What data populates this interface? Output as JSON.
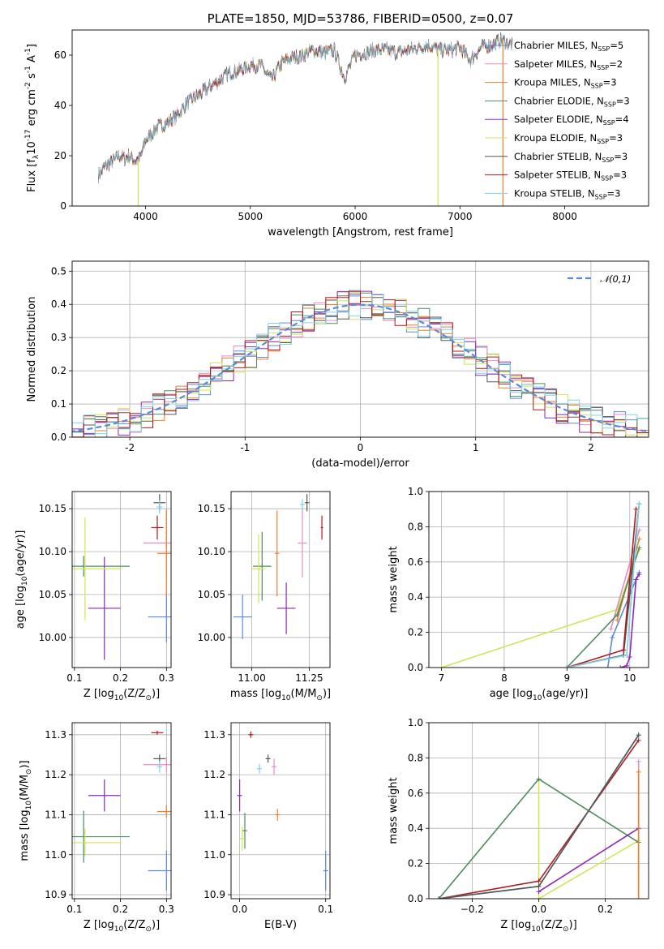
{
  "colors": {
    "Chabrier MILES": "#5b8bd6",
    "Salpeter MILES": "#e68cc3",
    "Kroupa MILES": "#ee7f2d",
    "Chabrier ELODIE": "#4f8b5e",
    "Salpeter ELODIE": "#8c2ab4",
    "Kroupa ELODIE": "#d2e458",
    "Chabrier STELIB": "#555555",
    "Salpeter STELIB": "#b0191e",
    "Kroupa STELIB": "#7fd3e8"
  },
  "chart_data": [
    {
      "id": "spectrum",
      "type": "line",
      "title": "PLATE=1850, MJD=53786, FIBERID=0500, z=0.07",
      "xlabel": "wavelength [Angstrom, rest frame]",
      "ylabel": "Flux [f$_\\lambda$10$^{-17}$ erg cm$^{-2}$ s$^{-1}$ A$^{-1}$]",
      "xlim": [
        3300,
        8800
      ],
      "ylim": [
        0,
        70
      ],
      "xticks": [
        4000,
        5000,
        6000,
        7000,
        8000
      ],
      "yticks": [
        0,
        20,
        40,
        60
      ],
      "grid": false,
      "legend_position": "top-right",
      "legend": [
        {
          "model": "Chabrier MILES",
          "nssp": "5"
        },
        {
          "model": "Salpeter MILES",
          "nssp": "2"
        },
        {
          "model": "Kroupa MILES",
          "nssp": "3"
        },
        {
          "model": "Chabrier ELODIE",
          "nssp": "3"
        },
        {
          "model": "Salpeter ELODIE",
          "nssp": "4"
        },
        {
          "model": "Kroupa ELODIE",
          "nssp": "3"
        },
        {
          "model": "Chabrier STELIB",
          "nssp": "3"
        },
        {
          "model": "Salpeter STELIB",
          "nssp": "3"
        },
        {
          "model": "Kroupa STELIB",
          "nssp": "3"
        }
      ],
      "x": [
        3550,
        3600,
        3650,
        3700,
        3750,
        3800,
        3850,
        3900,
        3950,
        4000,
        4100,
        4200,
        4300,
        4400,
        4500,
        4600,
        4700,
        4800,
        4900,
        5000,
        5100,
        5200,
        5300,
        5400,
        5500,
        5600,
        5700,
        5800,
        5900,
        6000,
        6100,
        6200,
        6300,
        6400,
        6500,
        6600,
        6700,
        6800,
        6900,
        7000,
        7100,
        7200,
        7300,
        7400,
        7500
      ],
      "y": [
        12,
        15,
        17,
        18,
        20,
        19,
        20,
        18,
        19,
        26,
        31,
        33,
        36,
        41,
        44,
        47,
        50,
        53,
        54,
        56,
        56,
        50,
        57,
        59,
        60,
        62,
        61,
        62,
        51,
        60,
        61,
        62,
        62,
        61,
        62,
        63,
        64,
        62,
        62,
        63,
        58,
        63,
        64,
        66,
        64
      ],
      "spikes": [
        {
          "model": "Kroupa ELODIE",
          "x": 3930
        },
        {
          "model": "Kroupa ELODIE",
          "x": 6790
        },
        {
          "model": "Kroupa MILES",
          "x": 7410
        }
      ]
    },
    {
      "id": "residuals",
      "type": "line",
      "xlabel": "(data-model)/error",
      "ylabel": "Normed distribution",
      "xlim": [
        -2.5,
        2.5
      ],
      "ylim": [
        0,
        0.53
      ],
      "xticks": [
        -2,
        -1,
        0,
        1,
        2
      ],
      "yticks": [
        0.0,
        0.1,
        0.2,
        0.3,
        0.4,
        0.5
      ],
      "grid": true,
      "legend_position": "top-right",
      "reference": {
        "name": "$\\mathcal{N}(0,1)$",
        "mean": 0,
        "sigma": 1
      }
    },
    {
      "id": "age-vs-Z",
      "type": "scatter",
      "xlabel": "Z [log$_{10}$(Z/Z$_\\odot$)]",
      "ylabel": "age  [log$_{10}$(age/yr)]",
      "xlim": [
        0.095,
        0.31
      ],
      "ylim": [
        9.965,
        10.17
      ],
      "xticks": [
        0.1,
        0.2,
        0.3
      ],
      "yticks": [
        10.0,
        10.05,
        10.1,
        10.15
      ],
      "grid": true,
      "series": [
        {
          "model": "Chabrier MILES",
          "x": 0.3,
          "xerr": 0.04,
          "y": 10.024,
          "yerr": 0.03
        },
        {
          "model": "Salpeter MILES",
          "x": 0.3,
          "xerr": 0.05,
          "y": 10.11,
          "yerr": 0.04
        },
        {
          "model": "Kroupa MILES",
          "x": 0.3,
          "xerr": 0.02,
          "y": 10.098,
          "yerr": 0.05
        },
        {
          "model": "Chabrier ELODIE",
          "x": 0.12,
          "xerr": 0.1,
          "y": 10.083,
          "yerr": 0.012
        },
        {
          "model": "Salpeter ELODIE",
          "x": 0.165,
          "xerr": 0.035,
          "y": 10.034,
          "yerr": 0.06
        },
        {
          "model": "Kroupa ELODIE",
          "x": 0.123,
          "xerr": 0.08,
          "y": 10.08,
          "yerr": 0.06
        },
        {
          "model": "Chabrier STELIB",
          "x": 0.285,
          "xerr": 0.013,
          "y": 10.157,
          "yerr": 0.01
        },
        {
          "model": "Salpeter STELIB",
          "x": 0.28,
          "xerr": 0.013,
          "y": 10.128,
          "yerr": 0.014
        },
        {
          "model": "Kroupa STELIB",
          "x": 0.285,
          "xerr": 0.006,
          "y": 10.152,
          "yerr": 0.008
        }
      ]
    },
    {
      "id": "age-vs-mass",
      "type": "scatter",
      "xlabel": "mass [log$_{10}$(M/M$_\\odot$)]",
      "ylabel": "",
      "xlim": [
        10.91,
        11.34
      ],
      "ylim": [
        9.965,
        10.17
      ],
      "xticks": [
        11.0,
        11.25
      ],
      "yticks": [
        10.0,
        10.05,
        10.1,
        10.15
      ],
      "grid": true,
      "series": [
        {
          "model": "Chabrier MILES",
          "x": 10.96,
          "xerr": 0.04,
          "y": 10.024,
          "yerr": 0.026
        },
        {
          "model": "Salpeter MILES",
          "x": 11.22,
          "xerr": 0.02,
          "y": 10.11,
          "yerr": 0.04
        },
        {
          "model": "Kroupa MILES",
          "x": 11.11,
          "xerr": 0.01,
          "y": 10.098,
          "yerr": 0.05
        },
        {
          "model": "Chabrier ELODIE",
          "x": 11.045,
          "xerr": 0.04,
          "y": 10.083,
          "yerr": 0.04
        },
        {
          "model": "Salpeter ELODIE",
          "x": 11.15,
          "xerr": 0.04,
          "y": 10.034,
          "yerr": 0.03
        },
        {
          "model": "Kroupa ELODIE",
          "x": 11.03,
          "xerr": 0.03,
          "y": 10.08,
          "yerr": 0.04
        },
        {
          "model": "Chabrier STELIB",
          "x": 11.24,
          "xerr": 0.01,
          "y": 10.157,
          "yerr": 0.01
        },
        {
          "model": "Salpeter STELIB",
          "x": 11.305,
          "xerr": 0.005,
          "y": 10.128,
          "yerr": 0.014
        },
        {
          "model": "Kroupa STELIB",
          "x": 11.22,
          "xerr": 0.01,
          "y": 10.155,
          "yerr": 0.006
        }
      ]
    },
    {
      "id": "mass-weight-vs-age",
      "type": "line",
      "xlabel": "age  [log$_{10}$(age/yr)]",
      "ylabel": "mass weight",
      "xlim": [
        6.8,
        10.3
      ],
      "ylim": [
        0,
        1
      ],
      "xticks": [
        7,
        8,
        9,
        10
      ],
      "yticks": [
        0.0,
        0.2,
        0.4,
        0.6,
        0.8,
        1.0
      ],
      "grid": true,
      "series": [
        {
          "model": "Kroupa ELODIE",
          "x": [
            7.0,
            9.8,
            10.15
          ],
          "y": [
            0.0,
            0.33,
            0.67
          ]
        },
        {
          "model": "Chabrier MILES",
          "x": [
            9.65,
            9.72,
            10.1,
            10.15
          ],
          "y": [
            0.0,
            0.17,
            0.5,
            0.54
          ]
        },
        {
          "model": "Salpeter MILES",
          "x": [
            9.7,
            10.15
          ],
          "y": [
            0.22,
            0.78
          ]
        },
        {
          "model": "Kroupa MILES",
          "x": [
            9.8,
            10.15
          ],
          "y": [
            0.27,
            0.73
          ]
        },
        {
          "model": "Chabrier ELODIE",
          "x": [
            9.0,
            9.8,
            10.15
          ],
          "y": [
            0.0,
            0.3,
            0.68
          ]
        },
        {
          "model": "Salpeter ELODIE",
          "x": [
            9.85,
            9.95,
            10.0,
            10.1,
            10.15
          ],
          "y": [
            0.0,
            0.01,
            0.06,
            0.5,
            0.53
          ]
        },
        {
          "model": "Chabrier STELIB",
          "x": [
            9.0,
            9.9,
            10.15
          ],
          "y": [
            0.0,
            0.07,
            0.93
          ]
        },
        {
          "model": "Salpeter STELIB",
          "x": [
            9.0,
            9.9,
            10.1
          ],
          "y": [
            0.0,
            0.1,
            0.9
          ]
        },
        {
          "model": "Kroupa STELIB",
          "x": [
            9.0,
            9.95,
            10.15
          ],
          "y": [
            0.0,
            0.07,
            0.93
          ]
        }
      ]
    },
    {
      "id": "mass-vs-Z",
      "type": "scatter",
      "xlabel": "Z [log$_{10}$(Z/Z$_\\odot$)]",
      "ylabel": "mass [log$_{10}$(M/M$_\\odot$)]",
      "xlim": [
        0.095,
        0.31
      ],
      "ylim": [
        10.89,
        11.33
      ],
      "xticks": [
        0.1,
        0.2,
        0.3
      ],
      "yticks": [
        10.9,
        11.0,
        11.1,
        11.2,
        11.3
      ],
      "grid": true,
      "series": [
        {
          "model": "Chabrier MILES",
          "x": 0.3,
          "xerr": 0.04,
          "y": 10.96,
          "yerr": 0.05
        },
        {
          "model": "Salpeter MILES",
          "x": 0.3,
          "xerr": 0.05,
          "y": 11.225,
          "yerr": 0.02
        },
        {
          "model": "Kroupa MILES",
          "x": 0.3,
          "xerr": 0.02,
          "y": 11.108,
          "yerr": 0.015
        },
        {
          "model": "Chabrier ELODIE",
          "x": 0.12,
          "xerr": 0.1,
          "y": 11.045,
          "yerr": 0.065
        },
        {
          "model": "Salpeter ELODIE",
          "x": 0.165,
          "xerr": 0.035,
          "y": 11.148,
          "yerr": 0.04
        },
        {
          "model": "Kroupa ELODIE",
          "x": 0.123,
          "xerr": 0.08,
          "y": 11.03,
          "yerr": 0.035
        },
        {
          "model": "Chabrier STELIB",
          "x": 0.285,
          "xerr": 0.013,
          "y": 11.24,
          "yerr": 0.01
        },
        {
          "model": "Salpeter STELIB",
          "x": 0.28,
          "xerr": 0.013,
          "y": 11.305,
          "yerr": 0.005
        },
        {
          "model": "Kroupa STELIB",
          "x": 0.285,
          "xerr": 0.006,
          "y": 11.22,
          "yerr": 0.015
        }
      ]
    },
    {
      "id": "mass-vs-ebv",
      "type": "scatter",
      "xlabel": "E(B-V)",
      "ylabel": "",
      "xlim": [
        -0.01,
        0.105
      ],
      "ylim": [
        10.89,
        11.33
      ],
      "xticks": [
        0.0,
        0.1
      ],
      "yticks": [
        10.9,
        11.0,
        11.1,
        11.2,
        11.3
      ],
      "grid": true,
      "series": [
        {
          "model": "Chabrier MILES",
          "x": 0.1,
          "y": 10.96,
          "yerr": 0.05
        },
        {
          "model": "Salpeter MILES",
          "x": 0.04,
          "y": 11.22,
          "yerr": 0.02
        },
        {
          "model": "Kroupa MILES",
          "x": 0.044,
          "y": 11.1,
          "yerr": 0.015
        },
        {
          "model": "Chabrier ELODIE",
          "x": 0.006,
          "y": 11.06,
          "yerr": 0.045
        },
        {
          "model": "Salpeter ELODIE",
          "x": 0.0,
          "y": 11.148,
          "yerr": 0.04
        },
        {
          "model": "Kroupa ELODIE",
          "x": 0.003,
          "y": 11.04,
          "yerr": 0.03
        },
        {
          "model": "Chabrier STELIB",
          "x": 0.033,
          "y": 11.24,
          "yerr": 0.01
        },
        {
          "model": "Salpeter STELIB",
          "x": 0.013,
          "y": 11.3,
          "yerr": 0.008
        },
        {
          "model": "Kroupa STELIB",
          "x": 0.023,
          "y": 11.215,
          "yerr": 0.012
        }
      ]
    },
    {
      "id": "mass-weight-vs-Z",
      "type": "line",
      "xlabel": "Z [log$_{10}$(Z/Z$_\\odot$)]",
      "ylabel": "mass weight",
      "xlim": [
        -0.33,
        0.33
      ],
      "ylim": [
        0,
        1
      ],
      "xticks": [
        -0.2,
        0.0,
        0.2
      ],
      "yticks": [
        0.0,
        0.2,
        0.4,
        0.6,
        0.8,
        1.0
      ],
      "grid": true,
      "series": [
        {
          "model": "Kroupa ELODIE",
          "x": [
            0.0,
            0.0,
            0.3,
            0.3
          ],
          "y": [
            0.68,
            0.0,
            0.33,
            0.0
          ]
        },
        {
          "model": "Chabrier ELODIE",
          "x": [
            -0.3,
            0.0,
            0.3
          ],
          "y": [
            0.0,
            0.68,
            0.32
          ]
        },
        {
          "model": "Chabrier MILES",
          "x": [
            -0.3,
            0.0,
            0.3
          ],
          "y": [
            0.0,
            0.07,
            0.93
          ]
        },
        {
          "model": "Salpeter STELIB",
          "x": [
            -0.3,
            0.0,
            0.3
          ],
          "y": [
            0.0,
            0.1,
            0.9
          ]
        },
        {
          "model": "Kroupa STELIB",
          "x": [
            -0.3,
            0.0,
            0.3
          ],
          "y": [
            0.0,
            0.07,
            0.93
          ]
        },
        {
          "model": "Chabrier STELIB",
          "x": [
            -0.3,
            0.0,
            0.3
          ],
          "y": [
            0.0,
            0.07,
            0.93
          ]
        },
        {
          "model": "Salpeter ELODIE",
          "x": [
            0.0,
            0.3
          ],
          "y": [
            0.04,
            0.4
          ]
        },
        {
          "model": "Salpeter MILES",
          "x": [
            0.3,
            0.3
          ],
          "y": [
            0.0,
            0.78
          ]
        },
        {
          "model": "Kroupa MILES",
          "x": [
            0.3,
            0.3
          ],
          "y": [
            0.0,
            0.72
          ]
        }
      ]
    }
  ]
}
